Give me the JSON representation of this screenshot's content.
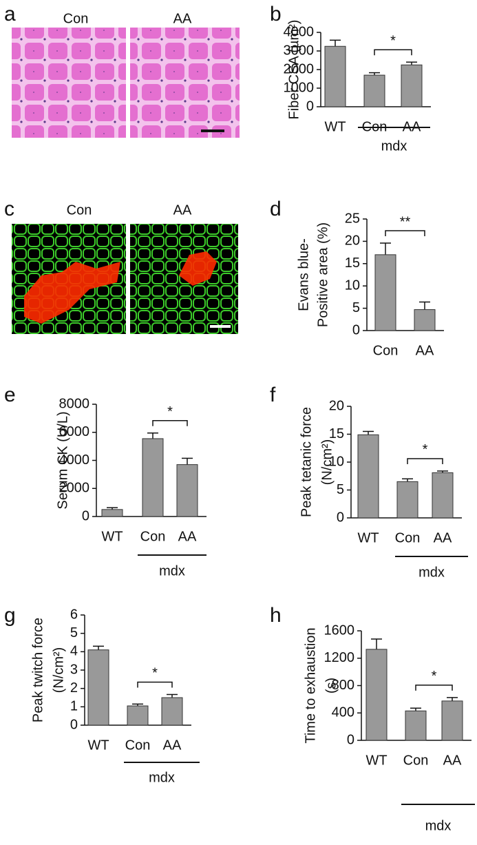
{
  "images": [
    {
      "letter": "a",
      "labels": [
        "Con",
        "AA"
      ]
    },
    {
      "letter": "c",
      "labels": [
        "Con",
        "AA"
      ]
    }
  ],
  "chart_data": [
    {
      "type": "bar",
      "panel": "b",
      "ylabel": [
        "Fiber CSA (µm²)"
      ],
      "categories": [
        "WT",
        "Con",
        "AA"
      ],
      "values": [
        3250,
        1700,
        2250
      ],
      "errors": [
        330,
        130,
        150
      ],
      "color": "#999999",
      "ylim": [
        0,
        4000
      ],
      "yticks": [
        0,
        1000,
        2000,
        3000,
        4000
      ],
      "group_label": "mdx",
      "significance": [
        {
          "between": [
            1,
            2
          ],
          "label": "*"
        }
      ]
    },
    {
      "type": "bar",
      "panel": "d",
      "ylabel": [
        "Evans blue-",
        "Positive area (%)"
      ],
      "categories": [
        "Con",
        "AA"
      ],
      "values": [
        17,
        4.7
      ],
      "errors": [
        2.6,
        1.7
      ],
      "color": "#999999",
      "ylim": [
        0,
        25
      ],
      "yticks": [
        0,
        5,
        10,
        15,
        20,
        25
      ],
      "significance": [
        {
          "between": [
            0,
            1
          ],
          "label": "**"
        }
      ]
    },
    {
      "type": "bar",
      "panel": "e",
      "ylabel": [
        "Serum CK (U/L)"
      ],
      "categories": [
        "WT",
        "Con",
        "AA"
      ],
      "values": [
        500,
        5550,
        3700
      ],
      "errors": [
        130,
        400,
        450
      ],
      "color": "#999999",
      "ylim": [
        0,
        8000
      ],
      "yticks": [
        0,
        2000,
        4000,
        6000,
        8000
      ],
      "group_label": "mdx",
      "significance": [
        {
          "between": [
            1,
            2
          ],
          "label": "*"
        }
      ]
    },
    {
      "type": "bar",
      "panel": "f",
      "ylabel": [
        "Peak tetanic force",
        "(N/cm²)"
      ],
      "categories": [
        "WT",
        "Con",
        "AA"
      ],
      "values": [
        14.9,
        6.5,
        8.1
      ],
      "errors": [
        0.6,
        0.5,
        0.3
      ],
      "color": "#999999",
      "ylim": [
        0,
        20
      ],
      "yticks": [
        0,
        5,
        10,
        15,
        20
      ],
      "group_label": "mdx",
      "significance": [
        {
          "between": [
            1,
            2
          ],
          "label": "*"
        }
      ]
    },
    {
      "type": "bar",
      "panel": "g",
      "ylabel": [
        "Peak twitch force",
        "(N/cm²)"
      ],
      "categories": [
        "WT",
        "Con",
        "AA"
      ],
      "values": [
        4.1,
        1.05,
        1.5
      ],
      "errors": [
        0.2,
        0.1,
        0.17
      ],
      "color": "#999999",
      "ylim": [
        0,
        6
      ],
      "yticks": [
        0,
        1,
        2,
        3,
        4,
        5,
        6
      ],
      "group_label": "mdx",
      "significance": [
        {
          "between": [
            1,
            2
          ],
          "label": "*"
        }
      ]
    },
    {
      "type": "bar",
      "panel": "h",
      "ylabel": [
        "Time to exhaustion",
        "(s)"
      ],
      "categories": [
        "WT",
        "Con",
        "AA"
      ],
      "values": [
        1330,
        430,
        575
      ],
      "errors": [
        150,
        40,
        50
      ],
      "color": "#999999",
      "ylim": [
        0,
        1600
      ],
      "yticks": [
        0,
        400,
        800,
        1200,
        1600
      ],
      "group_label": "mdx",
      "significance": [
        {
          "between": [
            1,
            2
          ],
          "label": "*"
        }
      ]
    }
  ]
}
